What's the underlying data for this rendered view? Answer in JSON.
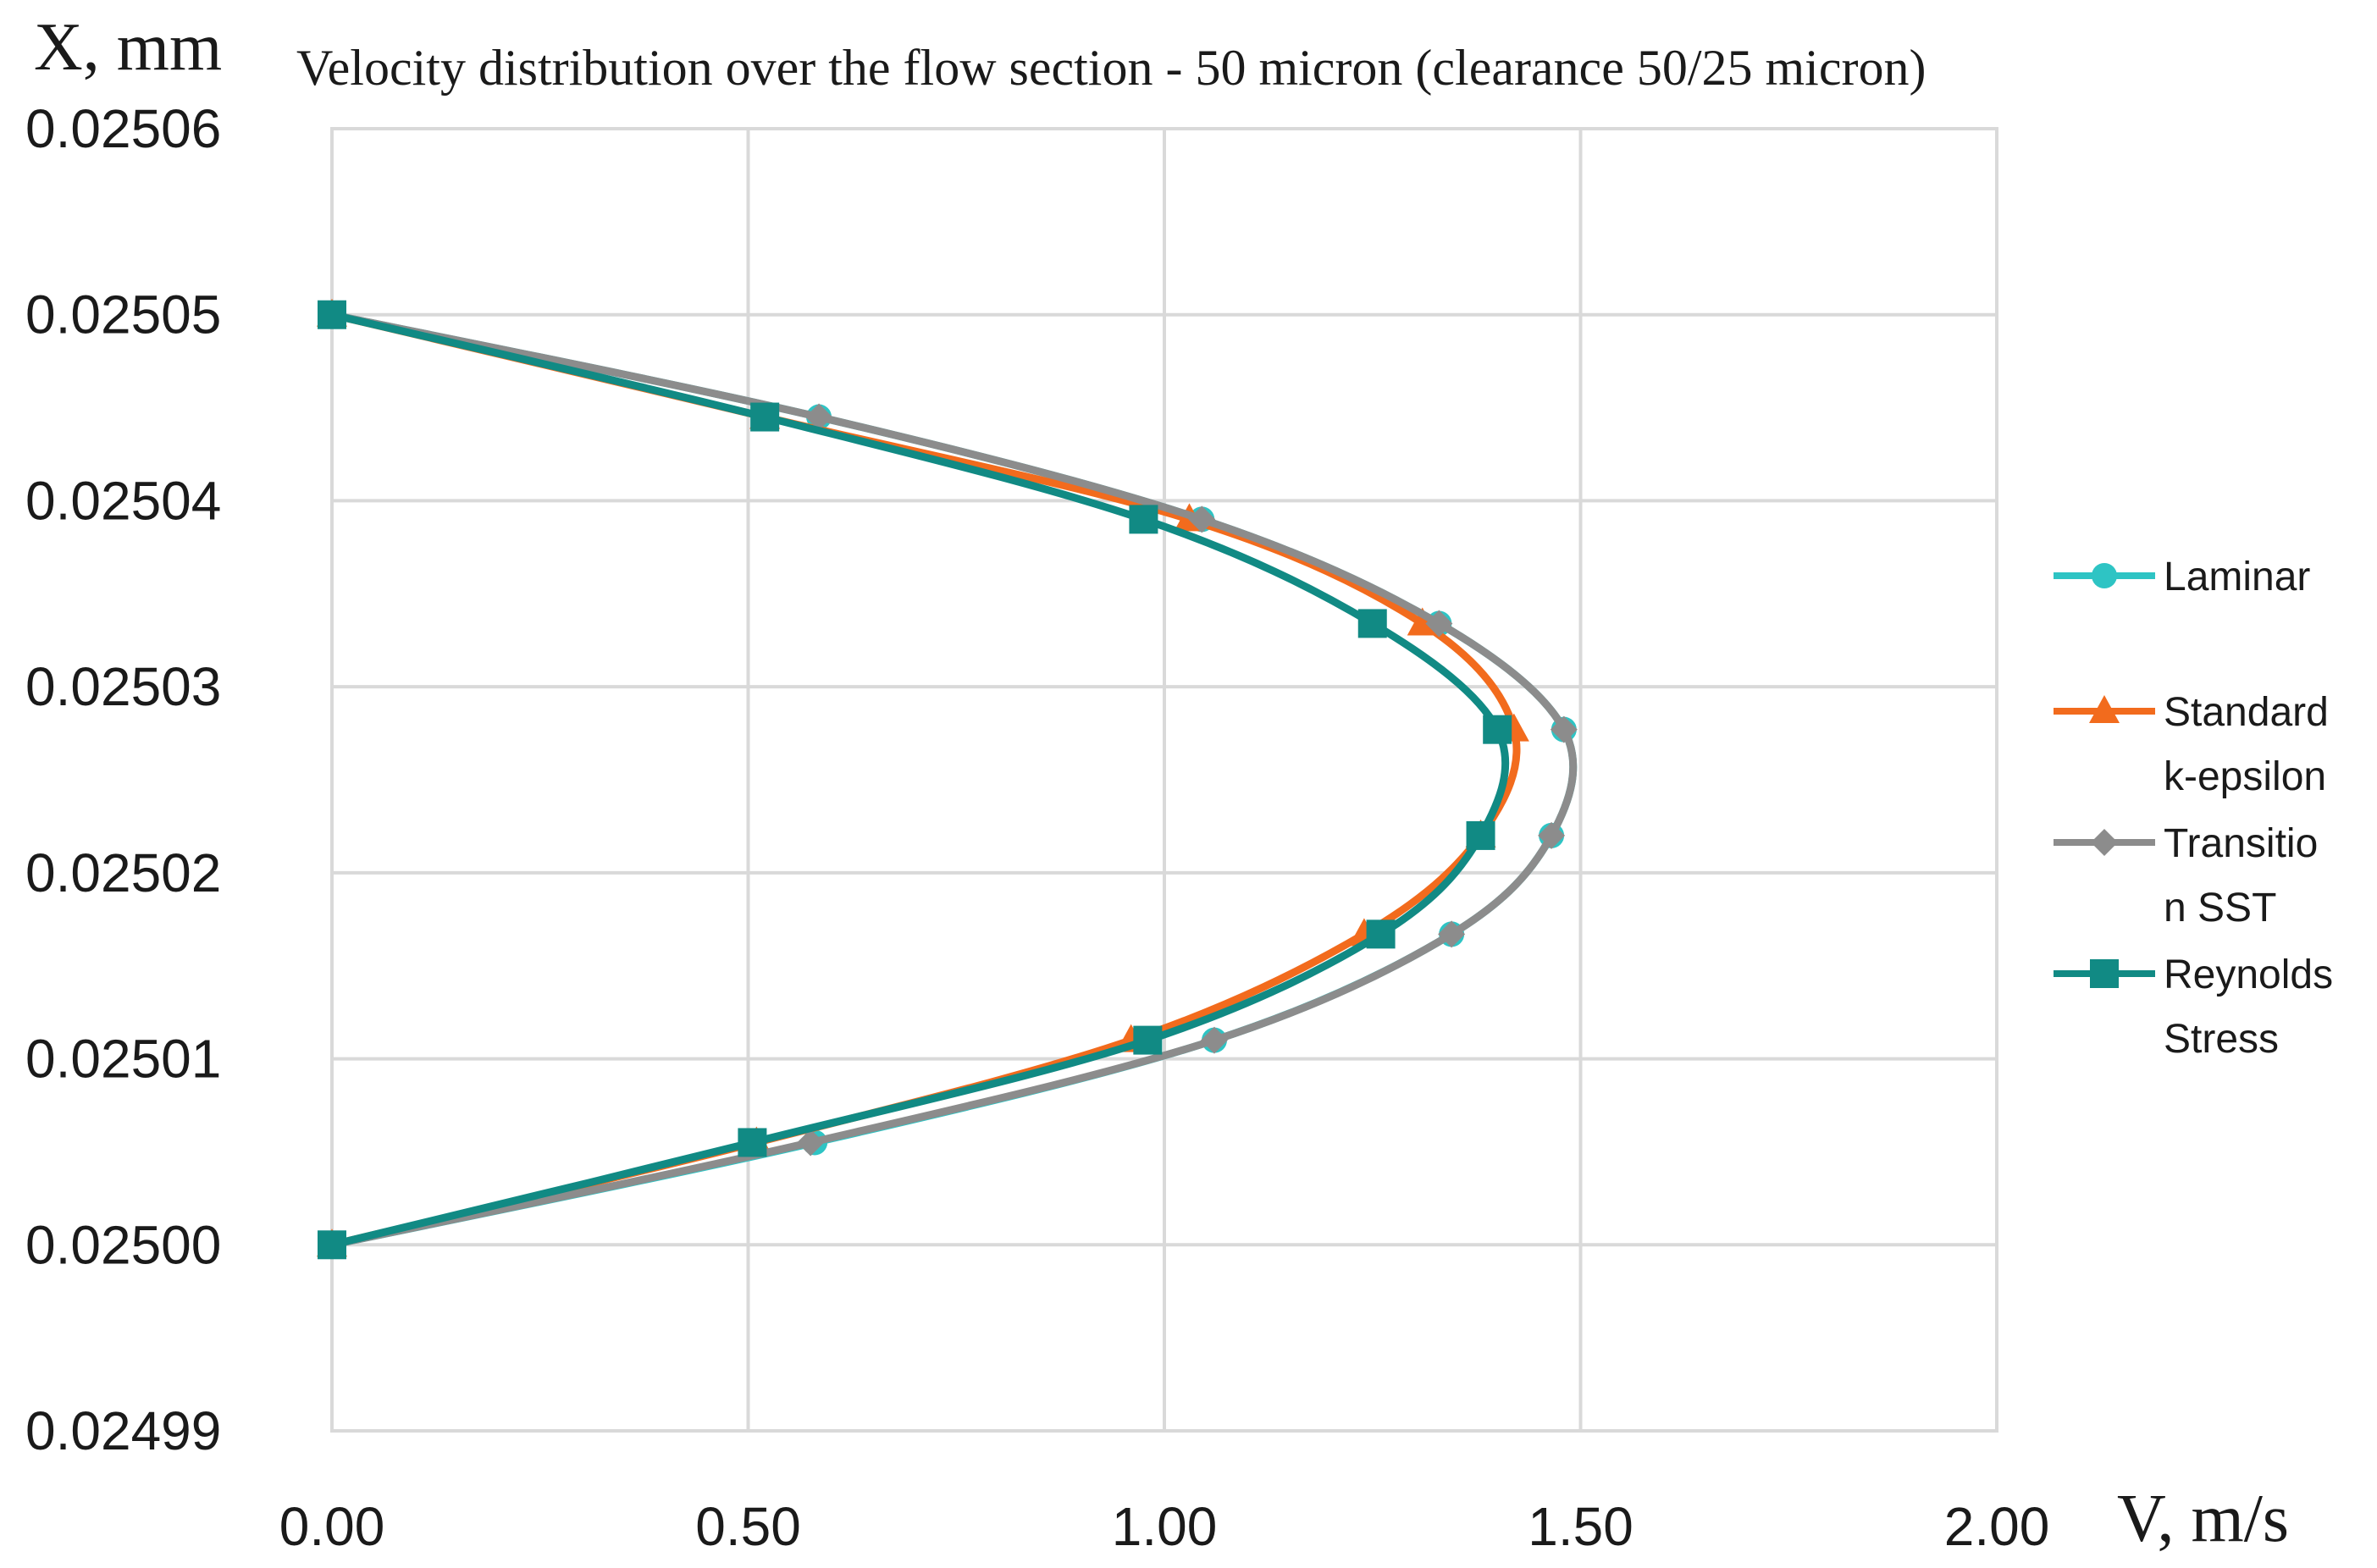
{
  "chart_data": {
    "type": "line",
    "title": "Velocity distribution over the flow section - 50 micron (clearance 50/25 micron)",
    "xlabel": "V, m/s",
    "ylabel": "X, mm",
    "xlim": [
      0,
      2
    ],
    "ylim": [
      0.02499,
      0.02506
    ],
    "x_ticks": [
      "0.00",
      "0.50",
      "1.00",
      "1.50",
      "2.00"
    ],
    "x_tick_values": [
      0,
      0.5,
      1.0,
      1.5,
      2.0
    ],
    "y_ticks": [
      "0.02499",
      "0.02500",
      "0.02501",
      "0.02502",
      "0.02503",
      "0.02504",
      "0.02505",
      "0.02506"
    ],
    "y_tick_values": [
      0.02499,
      0.025,
      0.02501,
      0.02502,
      0.02503,
      0.02504,
      0.02505,
      0.02506
    ],
    "grid": true,
    "legend_position": "right",
    "series": [
      {
        "name": "Laminar",
        "legend_lines": [
          "Laminar"
        ],
        "color": "#2EC4C4",
        "marker": "circle",
        "points": [
          {
            "x": 0.0,
            "y": 0.025
          },
          {
            "x": 0.58,
            "y": 0.0250055
          },
          {
            "x": 1.06,
            "y": 0.025011
          },
          {
            "x": 1.345,
            "y": 0.0250167
          },
          {
            "x": 1.465,
            "y": 0.025022
          },
          {
            "x": 1.48,
            "y": 0.0250277
          },
          {
            "x": 1.33,
            "y": 0.0250334
          },
          {
            "x": 1.045,
            "y": 0.025039
          },
          {
            "x": 0.585,
            "y": 0.0250445
          },
          {
            "x": 0.0,
            "y": 0.02505
          }
        ]
      },
      {
        "name": "Standard k-epsilon",
        "legend_lines": [
          "Standard",
          "k-epsilon"
        ],
        "color": "#F26B1D",
        "marker": "triangle",
        "points": [
          {
            "x": 0.0,
            "y": 0.025
          },
          {
            "x": 0.51,
            "y": 0.0250055
          },
          {
            "x": 0.96,
            "y": 0.025011
          },
          {
            "x": 1.24,
            "y": 0.0250167
          },
          {
            "x": 1.38,
            "y": 0.025022
          },
          {
            "x": 1.42,
            "y": 0.0250277
          },
          {
            "x": 1.31,
            "y": 0.0250334
          },
          {
            "x": 1.03,
            "y": 0.025039
          },
          {
            "x": 0.52,
            "y": 0.0250445
          },
          {
            "x": 0.0,
            "y": 0.02505
          }
        ]
      },
      {
        "name": "Transition SST",
        "legend_lines": [
          "Transitio",
          "n SST"
        ],
        "color": "#8C8C8C",
        "marker": "diamond",
        "points": [
          {
            "x": 0.0,
            "y": 0.025
          },
          {
            "x": 0.575,
            "y": 0.0250055
          },
          {
            "x": 1.06,
            "y": 0.025011
          },
          {
            "x": 1.345,
            "y": 0.0250167
          },
          {
            "x": 1.465,
            "y": 0.025022
          },
          {
            "x": 1.48,
            "y": 0.0250277
          },
          {
            "x": 1.33,
            "y": 0.0250334
          },
          {
            "x": 1.045,
            "y": 0.025039
          },
          {
            "x": 0.585,
            "y": 0.0250445
          },
          {
            "x": 0.0,
            "y": 0.02505
          }
        ]
      },
      {
        "name": "Reynolds Stress",
        "legend_lines": [
          "Reynolds",
          "Stress"
        ],
        "color": "#118A84",
        "marker": "square",
        "points": [
          {
            "x": 0.0,
            "y": 0.025
          },
          {
            "x": 0.505,
            "y": 0.0250055
          },
          {
            "x": 0.98,
            "y": 0.025011
          },
          {
            "x": 1.26,
            "y": 0.0250167
          },
          {
            "x": 1.38,
            "y": 0.025022
          },
          {
            "x": 1.4,
            "y": 0.0250277
          },
          {
            "x": 1.25,
            "y": 0.0250334
          },
          {
            "x": 0.975,
            "y": 0.025039
          },
          {
            "x": 0.52,
            "y": 0.0250445
          },
          {
            "x": 0.0,
            "y": 0.02505
          }
        ]
      }
    ]
  }
}
